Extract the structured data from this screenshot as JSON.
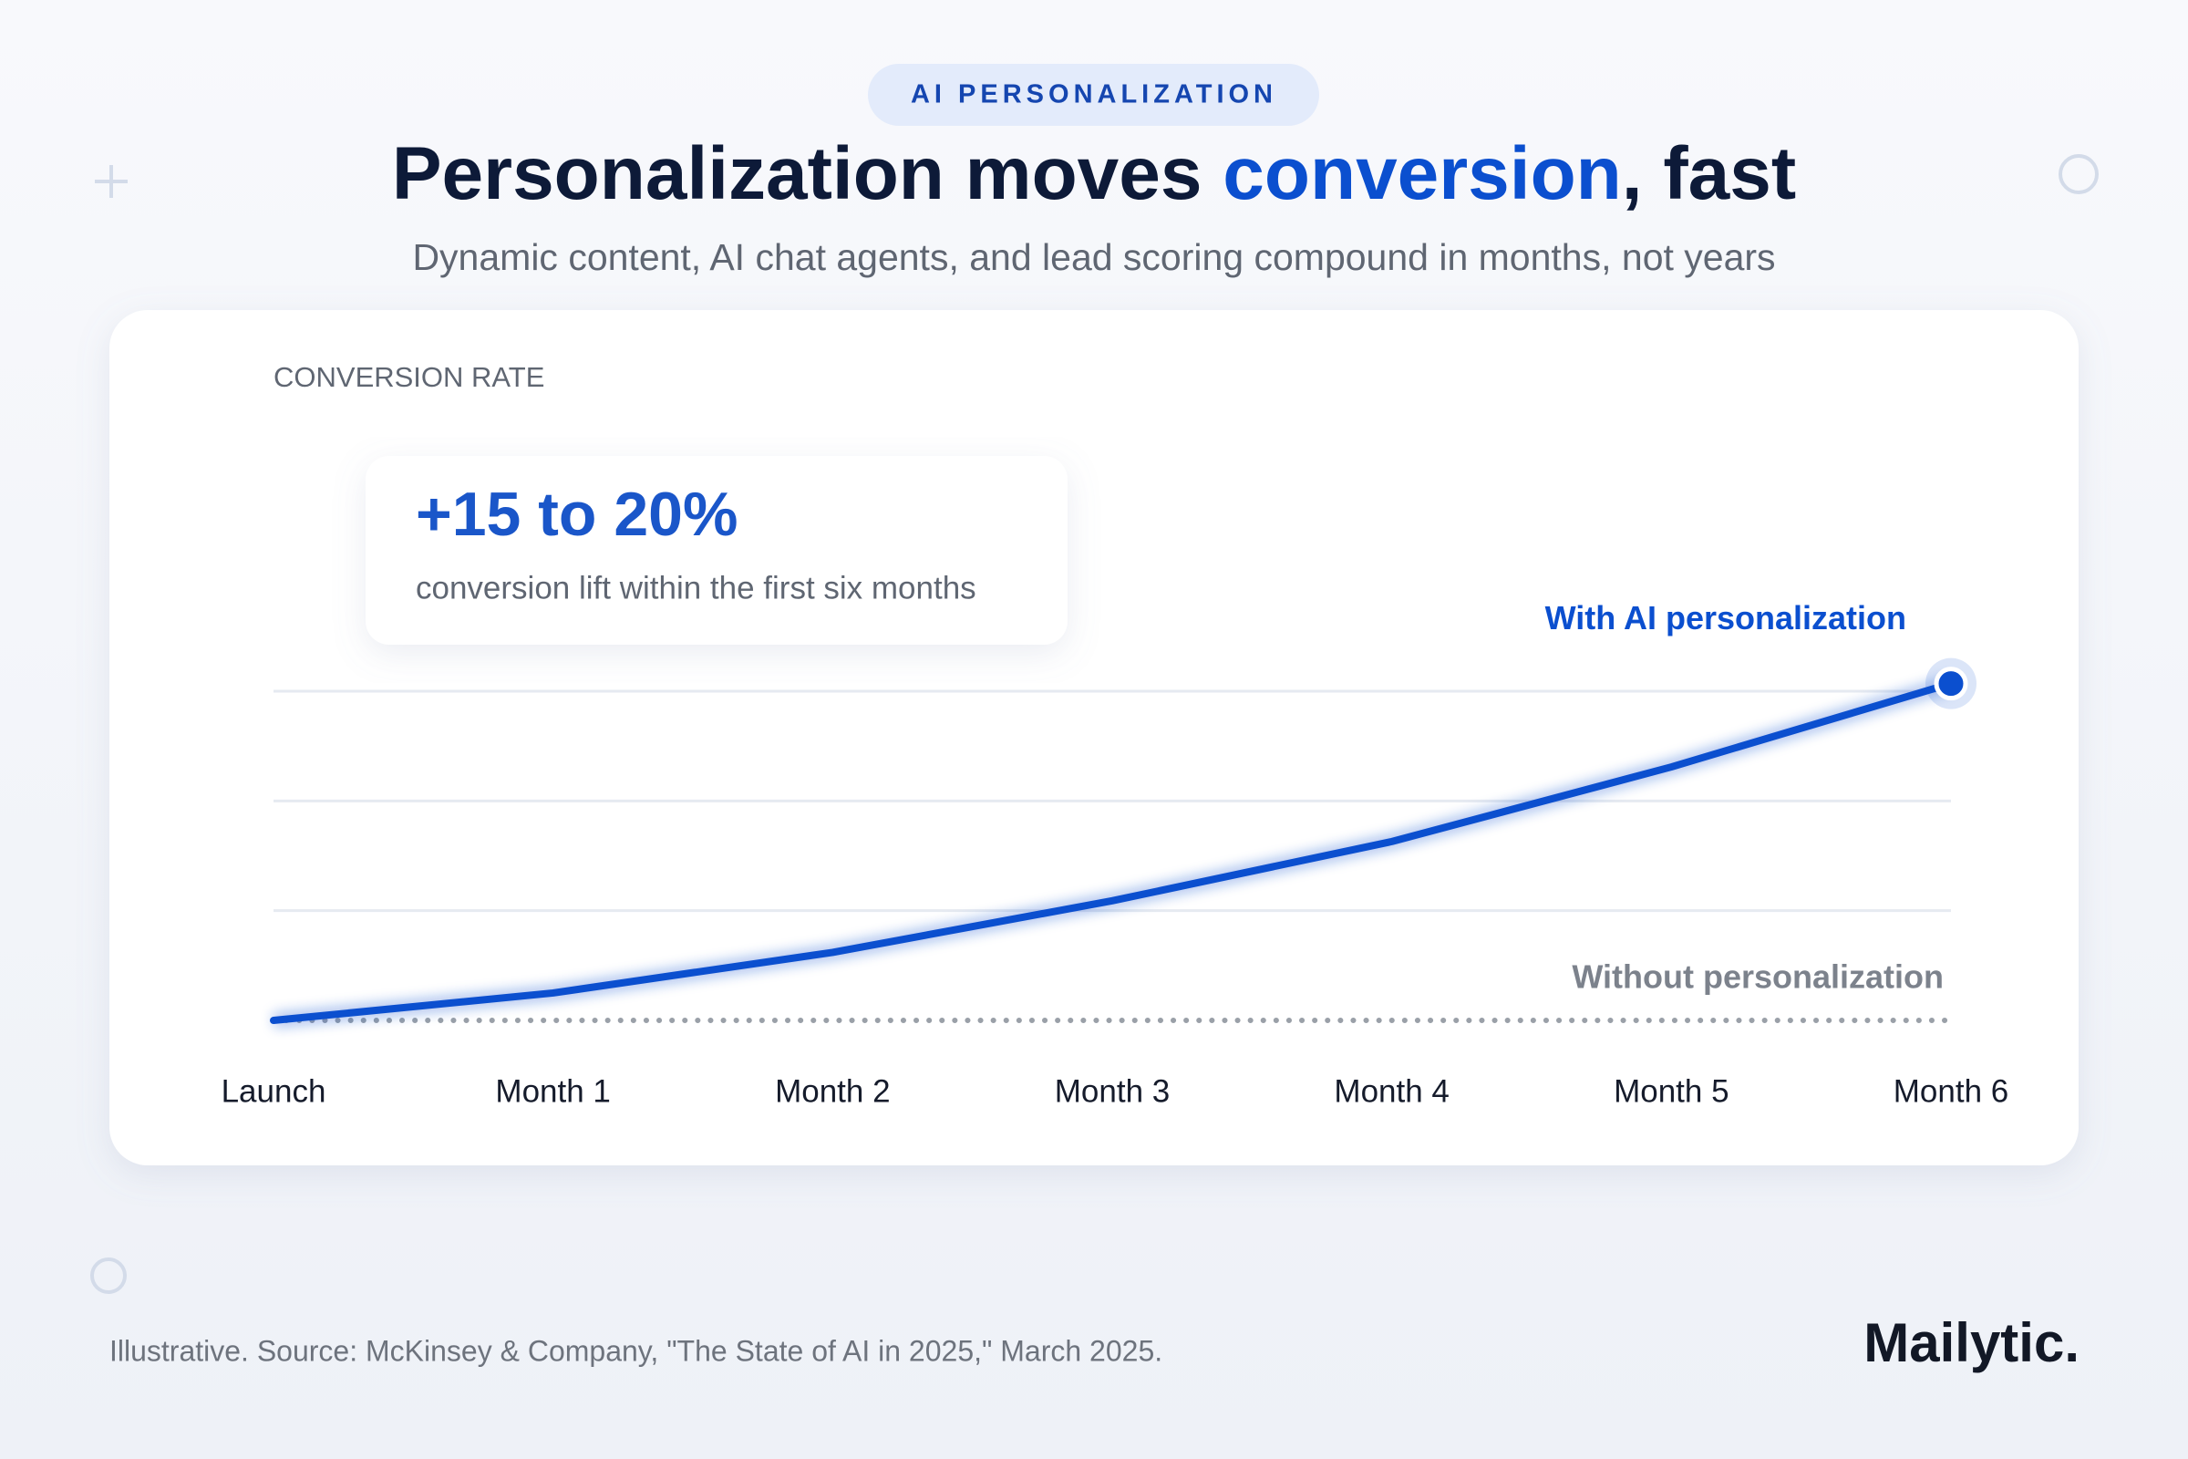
{
  "chart_data": {
    "type": "line",
    "badge": "AI PERSONALIZATION",
    "title_segments": [
      "Personalization moves ",
      "conversion",
      ", fast"
    ],
    "subtitle": "Dynamic content, AI chat agents, and lead scoring compound in months, not years",
    "y_label": "CONVERSION RATE",
    "annotation": {
      "headline": "+15 to 20%",
      "text": "conversion lift within the first six months"
    },
    "categories": [
      "Launch",
      "Month 1",
      "Month 2",
      "Month 3",
      "Month 4",
      "Month 5",
      "Month 6"
    ],
    "series": [
      {
        "name": "With AI personalization",
        "color": "#0b4fcf",
        "line_style": "solid",
        "end_marker": true,
        "values": [
          0,
          0.25,
          0.62,
          1.09,
          1.63,
          2.31,
          3.07
        ]
      },
      {
        "name": "Without personalization",
        "color": "#9aa0a8",
        "line_style": "dotted",
        "end_marker": false,
        "values": [
          0,
          0,
          0,
          0,
          0,
          0,
          0
        ]
      }
    ],
    "ylim": [
      0,
      3.1
    ],
    "yticks": [
      1,
      2,
      3
    ],
    "grid": true,
    "source": "Illustrative. Source: McKinsey & Company, \"The State of AI in 2025,\" March 2025.",
    "brand": "Mailytic."
  }
}
